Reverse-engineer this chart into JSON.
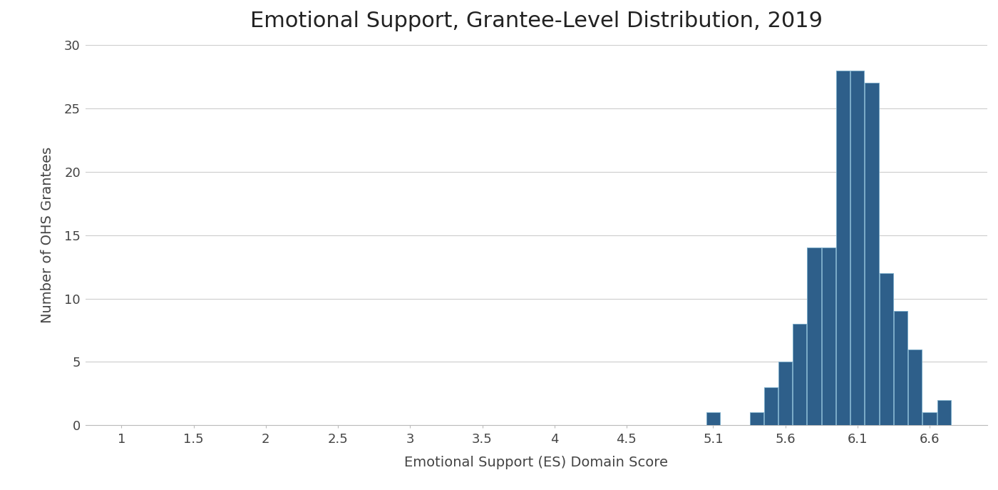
{
  "title": "Emotional Support, Grantee-Level Distribution, 2019",
  "xlabel": "Emotional Support (ES) Domain Score",
  "ylabel": "Number of OHS Grantees",
  "bar_color": "#2E5F8A",
  "bar_edge_color": "#7AAAC8",
  "background_color": "#FFFFFF",
  "xlim": [
    0.75,
    7.0
  ],
  "ylim": [
    0,
    30
  ],
  "xtick_positions": [
    1.0,
    1.5,
    2.0,
    2.5,
    3.0,
    3.5,
    4.0,
    4.5,
    5.1,
    5.6,
    6.1,
    6.6
  ],
  "xtick_labels": [
    "1",
    "1.5",
    "2",
    "2.5",
    "3",
    "3.5",
    "4",
    "4.5",
    "5.1",
    "5.6",
    "6.1",
    "6.6"
  ],
  "yticks": [
    0,
    5,
    10,
    15,
    20,
    25,
    30
  ],
  "bar_positions": [
    5.1,
    5.4,
    5.5,
    5.6,
    5.7,
    5.8,
    5.9,
    6.0,
    6.1,
    6.2,
    6.3,
    6.4,
    6.5,
    6.6,
    6.7
  ],
  "bar_heights": [
    1,
    1,
    3,
    5,
    8,
    14,
    14,
    28,
    28,
    27,
    12,
    9,
    6,
    1,
    2
  ],
  "bar_width": 0.095,
  "title_fontsize": 22,
  "label_fontsize": 14,
  "tick_fontsize": 13
}
